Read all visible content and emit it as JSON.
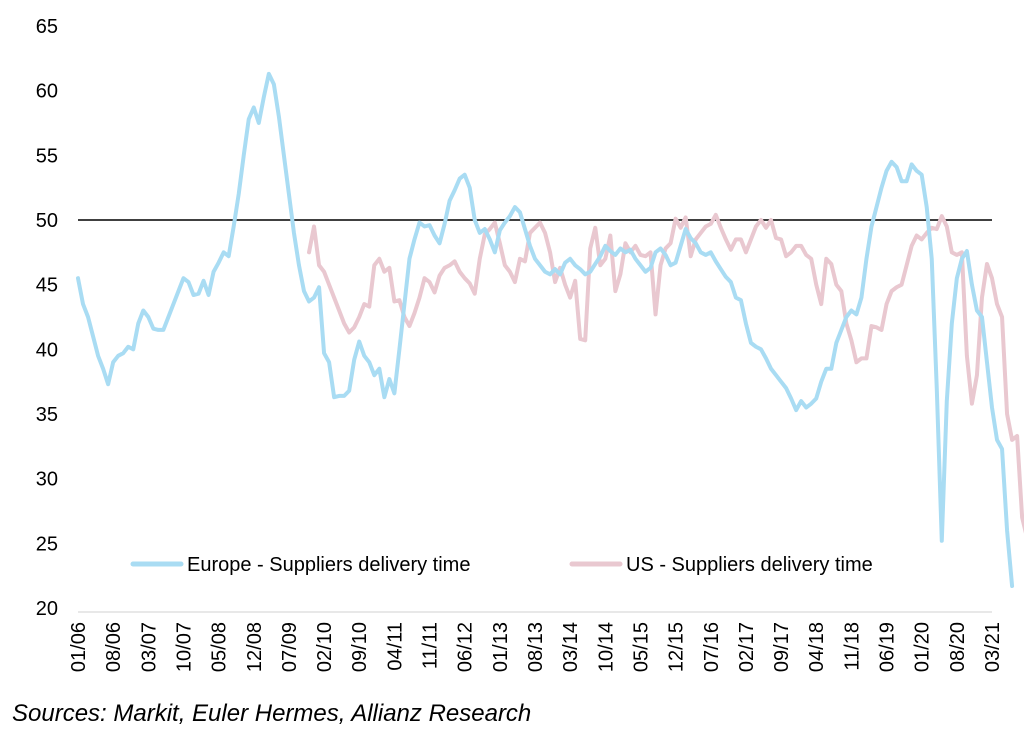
{
  "chart_data": {
    "type": "line",
    "title": "",
    "xlabel": "",
    "ylabel": "",
    "ylim": [
      20,
      65
    ],
    "y_ticks": [
      20,
      25,
      30,
      35,
      40,
      45,
      50,
      55,
      60,
      65
    ],
    "x_tick_labels": [
      "01/06",
      "08/06",
      "03/07",
      "10/07",
      "05/08",
      "12/08",
      "07/09",
      "02/10",
      "09/10",
      "04/11",
      "11/11",
      "06/12",
      "01/13",
      "08/13",
      "03/14",
      "10/14",
      "05/15",
      "12/15",
      "07/16",
      "02/17",
      "09/17",
      "04/18",
      "11/18",
      "06/19",
      "01/20",
      "08/20",
      "03/21"
    ],
    "reference_line": 50,
    "grid": false,
    "legend_position": "bottom",
    "colors": {
      "europe": "#a9dcf3",
      "us": "#e9c8d0",
      "reference": "#000000"
    },
    "series": [
      {
        "name": "Europe - Suppliers delivery time",
        "start_month": "01/06",
        "values": [
          45.5,
          43.5,
          42.5,
          41,
          39.5,
          38.5,
          37.3,
          39,
          39.5,
          39.7,
          40.2,
          40,
          42,
          43,
          42.5,
          41.6,
          41.5,
          41.5,
          42.5,
          43.5,
          44.5,
          45.5,
          45.2,
          44.2,
          44.3,
          45.3,
          44.2,
          46,
          46.7,
          47.5,
          47.2,
          49.5,
          52,
          55,
          57.8,
          58.7,
          57.5,
          59.5,
          61.3,
          60.5,
          58,
          55,
          52,
          49,
          46.5,
          44.5,
          43.7,
          44,
          44.8,
          39.7,
          39,
          36.3,
          36.4,
          36.4,
          36.8,
          39.2,
          40.6,
          39.5,
          39,
          38,
          38.5,
          36.3,
          37.7,
          36.6,
          40,
          43.5,
          47,
          48.5,
          49.8,
          49.5,
          49.6,
          48.8,
          48.2,
          49.7,
          51.5,
          52.3,
          53.2,
          53.5,
          52.5,
          50,
          49,
          49.3,
          48.5,
          47.5,
          49.2,
          49.8,
          50.3,
          51,
          50.6,
          49.3,
          48,
          47,
          46.5,
          46,
          45.8,
          46.2,
          45.8,
          46.7,
          47,
          46.5,
          46.2,
          45.8,
          46,
          46.6,
          47.2,
          48,
          47.6,
          47.3,
          47.8,
          47.5,
          47.7,
          47,
          46.5,
          46,
          46.3,
          47.5,
          47.8,
          47.3,
          46.5,
          46.7,
          48,
          49.3,
          48.6,
          48.2,
          47.5,
          47.3,
          47.5,
          46.8,
          46.2,
          45.6,
          45.2,
          44,
          43.8,
          42,
          40.5,
          40.2,
          40,
          39.3,
          38.5,
          38,
          37.5,
          37,
          36.2,
          35.3,
          36,
          35.5,
          35.8,
          36.2,
          37.5,
          38.5,
          38.5,
          40.5,
          41.5,
          42.5,
          43,
          42.7,
          44,
          47,
          49.5,
          51,
          52.5,
          53.8,
          54.5,
          54.1,
          53,
          53,
          54.3,
          53.8,
          53.5,
          51,
          47,
          37,
          25.2,
          36,
          42,
          45.5,
          47,
          47.6,
          45,
          43,
          42.5,
          39,
          35.5,
          33,
          32.3,
          26,
          21.7
        ]
      },
      {
        "name": "US - Suppliers delivery time",
        "start_month": "11/09",
        "values": [
          47.5,
          49.5,
          46.5,
          46,
          45,
          44,
          43,
          42,
          41.3,
          41.7,
          42.5,
          43.5,
          43.3,
          46.5,
          47,
          46,
          46.3,
          43.7,
          43.8,
          42.5,
          41.8,
          42.8,
          44,
          45.5,
          45.2,
          44.4,
          45.7,
          46.3,
          46.5,
          46.8,
          46,
          45.5,
          45.1,
          44.3,
          47,
          48.9,
          49.3,
          49.8,
          48.2,
          46.5,
          46,
          45.2,
          47,
          46.8,
          49,
          49.4,
          49.8,
          49,
          47.5,
          45.2,
          46.3,
          45,
          44,
          45.3,
          40.8,
          40.7,
          47.8,
          49.4,
          46.5,
          47,
          48.8,
          44.5,
          45.8,
          48.2,
          47.5,
          48,
          47.3,
          47.2,
          47.5,
          42.7,
          46.5,
          47.8,
          48.2,
          50.1,
          49.4,
          50.2,
          47.2,
          48.5,
          49,
          49.5,
          49.7,
          50.4,
          49.4,
          48.5,
          47.7,
          48.5,
          48.5,
          47.5,
          48.5,
          49.5,
          50,
          49.4,
          50,
          48.6,
          48.5,
          47.2,
          47.5,
          48,
          48,
          47.3,
          47,
          45,
          43.5,
          47,
          46.6,
          45,
          44.5,
          42,
          40.7,
          39,
          39.3,
          39.3,
          41.8,
          41.7,
          41.5,
          43.5,
          44.5,
          44.8,
          45,
          46.5,
          48,
          48.8,
          48.5,
          49,
          49.4,
          49.3,
          50.3,
          49.5,
          47.5,
          47.3,
          47.5,
          39.5,
          35.8,
          38,
          44,
          46.6,
          45.5,
          43.5,
          42.5,
          35,
          33,
          33.3,
          27,
          25.4
        ]
      }
    ]
  },
  "source_note": "Sources: Markit, Euler Hermes, Allianz Research"
}
